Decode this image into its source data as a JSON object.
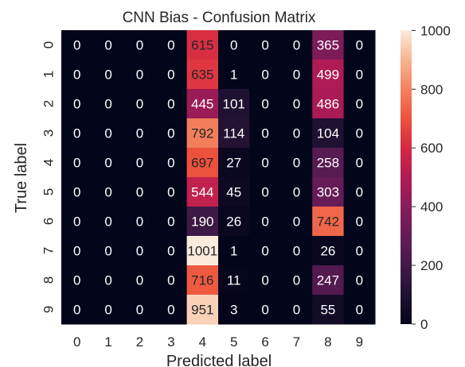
{
  "chart_data": {
    "type": "heatmap",
    "title": "CNN Bias - Confusion Matrix",
    "xlabel": "Predicted label",
    "ylabel": "True label",
    "x_categories": [
      "0",
      "1",
      "2",
      "3",
      "4",
      "5",
      "6",
      "7",
      "8",
      "9"
    ],
    "y_categories": [
      "0",
      "1",
      "2",
      "3",
      "4",
      "5",
      "6",
      "7",
      "8",
      "9"
    ],
    "values": [
      [
        0,
        0,
        0,
        0,
        615,
        0,
        0,
        0,
        365,
        0
      ],
      [
        0,
        0,
        0,
        0,
        635,
        1,
        0,
        0,
        499,
        0
      ],
      [
        0,
        0,
        0,
        0,
        445,
        101,
        0,
        0,
        486,
        0
      ],
      [
        0,
        0,
        0,
        0,
        792,
        114,
        0,
        0,
        104,
        0
      ],
      [
        0,
        0,
        0,
        0,
        697,
        27,
        0,
        0,
        258,
        0
      ],
      [
        0,
        0,
        0,
        0,
        544,
        45,
        0,
        0,
        303,
        0
      ],
      [
        0,
        0,
        0,
        0,
        190,
        26,
        0,
        0,
        742,
        0
      ],
      [
        0,
        0,
        0,
        0,
        1001,
        1,
        0,
        0,
        26,
        0
      ],
      [
        0,
        0,
        0,
        0,
        716,
        11,
        0,
        0,
        247,
        0
      ],
      [
        0,
        0,
        0,
        0,
        951,
        3,
        0,
        0,
        55,
        0
      ]
    ],
    "colorbar": {
      "range": [
        0,
        1001
      ],
      "ticks": [
        "0",
        "200",
        "400",
        "600",
        "800",
        "1000"
      ],
      "colormap": "rocket"
    },
    "annotations": true
  }
}
